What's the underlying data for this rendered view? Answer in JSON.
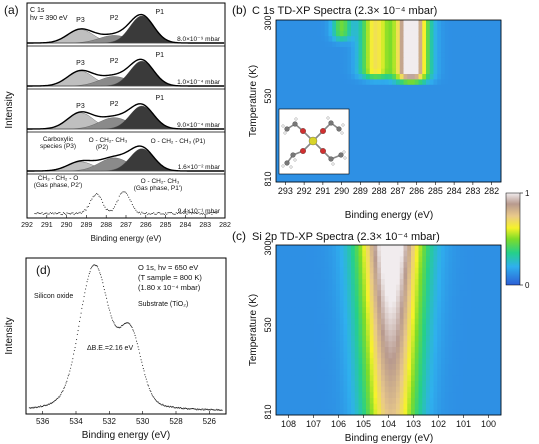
{
  "figure": {
    "panel_labels": [
      "(a)",
      "(b)",
      "(c)",
      "(d)"
    ]
  },
  "chart_data": [
    {
      "panel": "(a)",
      "type": "area",
      "ylabel": "Intensity",
      "xlabel": "Binding energy (eV)",
      "xlim": [
        292,
        282
      ],
      "x_ticks": [
        "292",
        "291",
        "290",
        "289",
        "288",
        "287",
        "286",
        "285",
        "284",
        "283",
        "282"
      ],
      "corner_text": [
        "C 1s",
        "hv = 390 eV"
      ],
      "rows": [
        {
          "pressure": "8.0×10⁻⁹ mbar",
          "peak_labels": [
            "P3",
            "P2",
            "P1"
          ],
          "components": [
            {
              "name": "P3",
              "center": 289.3,
              "height": 0.5,
              "width": 0.65,
              "color": "#bfbfbf"
            },
            {
              "name": "P2",
              "center": 287.6,
              "height": 0.28,
              "width": 0.75,
              "color": "#8a8a8a"
            },
            {
              "name": "P1",
              "center": 286.2,
              "height": 1.0,
              "width": 0.6,
              "color": "#3a3a3a"
            }
          ]
        },
        {
          "pressure": "1.0×10⁻⁴ mbar",
          "peak_labels": [
            "P3",
            "P2",
            "P1"
          ],
          "components": [
            {
              "name": "P3",
              "center": 289.3,
              "height": 0.55,
              "width": 0.65,
              "color": "#bfbfbf"
            },
            {
              "name": "P2",
              "center": 287.6,
              "height": 0.35,
              "width": 0.75,
              "color": "#8a8a8a"
            },
            {
              "name": "P1",
              "center": 286.2,
              "height": 0.92,
              "width": 0.6,
              "color": "#3a3a3a"
            }
          ]
        },
        {
          "pressure": "9.0×10⁻⁴ mbar",
          "peak_labels": [
            "P3",
            "P2",
            "P1"
          ],
          "components": [
            {
              "name": "P3",
              "center": 289.3,
              "height": 0.6,
              "width": 0.65,
              "color": "#bfbfbf"
            },
            {
              "name": "P2",
              "center": 287.6,
              "height": 0.42,
              "width": 0.75,
              "color": "#8a8a8a"
            },
            {
              "name": "P1",
              "center": 286.2,
              "height": 0.85,
              "width": 0.6,
              "color": "#3a3a3a"
            }
          ]
        },
        {
          "pressure": "1.6×10⁻² mbar",
          "peak_labels": [
            "Carboxylic species (P3)",
            "O - CH₂- CH₃ (P2)",
            "O - CH₂ - CH₃ (P1)"
          ],
          "components": [
            {
              "name": "P3",
              "center": 289.3,
              "height": 0.35,
              "width": 0.65,
              "color": "#bfbfbf"
            },
            {
              "name": "P2",
              "center": 287.6,
              "height": 0.5,
              "width": 0.75,
              "color": "#8a8a8a"
            },
            {
              "name": "P1",
              "center": 286.2,
              "height": 0.85,
              "width": 0.6,
              "color": "#3a3a3a"
            }
          ]
        },
        {
          "pressure": "9.4×10⁻¹ mbar",
          "peak_labels": [
            "CH₃ - CH₂ - O (Gas phase, P2')",
            "O - CH₂- CH₃ (Gas phase, P1')"
          ],
          "components": [
            {
              "name": "P2'",
              "center": 288.5,
              "height": 0.8,
              "width": 0.3,
              "color": "#ffffff"
            },
            {
              "name": "P1'",
              "center": 287.1,
              "height": 0.95,
              "width": 0.3,
              "color": "#ffffff"
            }
          ]
        }
      ]
    },
    {
      "panel": "(b)",
      "type": "heatmap",
      "title": "C 1s TD-XP Spectra (2.3× 10⁻⁴ mbar)",
      "xlabel": "Binding energy (eV)",
      "ylabel": "Temperature (K)",
      "x_ticks": [
        "293",
        "292",
        "291",
        "290",
        "289",
        "288",
        "287",
        "286",
        "285",
        "284",
        "283",
        "282"
      ],
      "y_ticks": [
        "300",
        "530",
        "810"
      ],
      "xlim": [
        293.5,
        281.5
      ],
      "ylim": [
        300,
        810
      ],
      "features": [
        {
          "center_eV": 286.3,
          "sigma_eV": 0.6,
          "T_start": 300,
          "T_end": 470,
          "peak": 1.0
        },
        {
          "center_eV": 288.2,
          "sigma_eV": 0.55,
          "T_start": 300,
          "T_end": 460,
          "peak": 0.55
        },
        {
          "center_eV": 290.0,
          "sigma_eV": 0.35,
          "T_start": 300,
          "T_end": 340,
          "peak": 0.35
        }
      ]
    },
    {
      "panel": "(c)",
      "type": "heatmap",
      "title": "Si 2p TD-XP Spectra (2.3× 10⁻⁴ mbar)",
      "xlabel": "Binding energy (eV)",
      "ylabel": "Temperature (K)",
      "x_ticks": [
        "108",
        "107",
        "106",
        "105",
        "104",
        "103",
        "102",
        "101",
        "100"
      ],
      "y_ticks": [
        "300",
        "530",
        "810"
      ],
      "xlim": [
        108.5,
        99.5
      ],
      "ylim": [
        300,
        810
      ],
      "features": [
        {
          "center_eV": 103.9,
          "sigma_eV": 0.9,
          "T_start": 300,
          "T_end": 810,
          "peak": 1.0
        }
      ]
    },
    {
      "panel": "(d)",
      "type": "scatter",
      "xlabel": "Binding energy (eV)",
      "ylabel": "Intensity",
      "x_ticks": [
        "536",
        "534",
        "532",
        "530",
        "528",
        "526"
      ],
      "xlim": [
        537,
        525
      ],
      "info_lines": [
        "O 1s, hν = 650 eV",
        "(T sample = 800 K)",
        "(1.80 x 10⁻⁴ mbar)"
      ],
      "annotations": [
        "Silicon oxide",
        "Substrate (TiO₂)",
        "ΔB.E.=2.16 eV"
      ],
      "components": [
        {
          "name": "Silicon oxide",
          "center": 532.9,
          "height": 1.0,
          "width": 0.85
        },
        {
          "name": "Substrate (TiO₂)",
          "center": 530.75,
          "height": 0.52,
          "width": 0.65
        }
      ]
    }
  ],
  "colorbar": {
    "ticks": [
      "1",
      "0"
    ],
    "stops": [
      "#2d5fd6",
      "#2fb0ee",
      "#25d08a",
      "#7edc29",
      "#f6f22a",
      "#e9c98a",
      "#b89a8e",
      "#f1ecee"
    ]
  }
}
